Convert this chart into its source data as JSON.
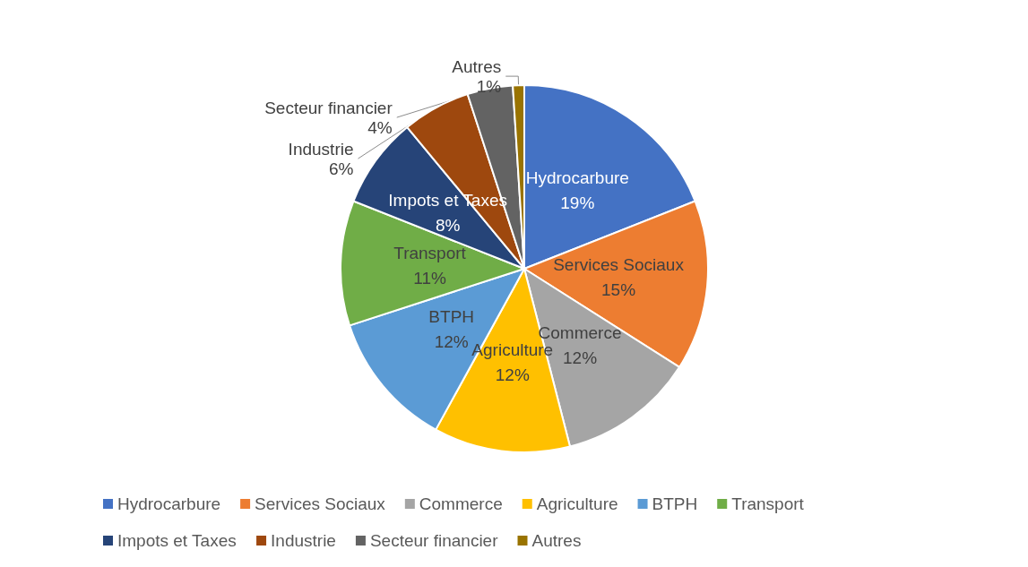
{
  "chart_data": {
    "type": "pie",
    "categories": [
      "Hydrocarbure",
      "Services Sociaux",
      "Commerce",
      "Agriculture",
      "BTPH",
      "Transport",
      "Impots et Taxes",
      "Industrie",
      "Secteur financier",
      "Autres"
    ],
    "values": [
      19,
      15,
      12,
      12,
      12,
      11,
      8,
      6,
      4,
      1
    ],
    "value_labels": [
      "19%",
      "15%",
      "12%",
      "12%",
      "12%",
      "11%",
      "8%",
      "6%",
      "4%",
      "1%"
    ],
    "colors": [
      "#4472c4",
      "#ed7d31",
      "#a5a5a5",
      "#ffc000",
      "#5b9bd5",
      "#70ad47",
      "#264478",
      "#9e480e",
      "#636363",
      "#997300"
    ],
    "legend": "bottom"
  }
}
